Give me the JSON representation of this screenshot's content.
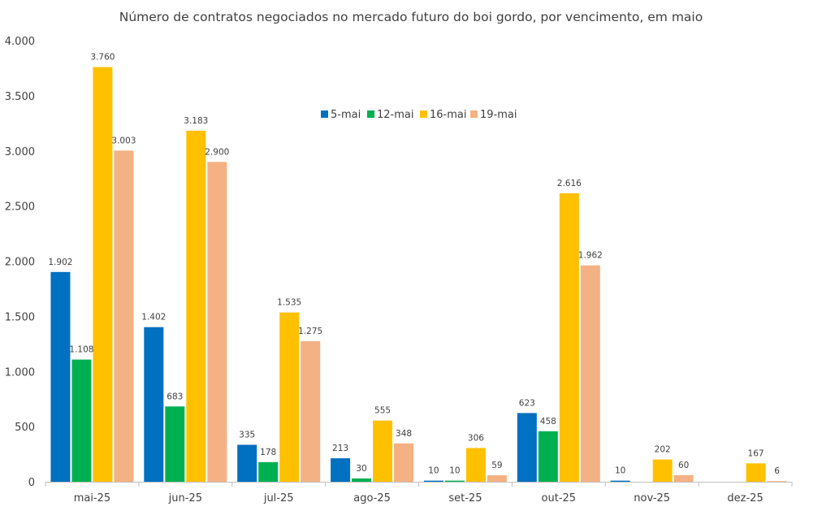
{
  "chart_data": {
    "type": "bar",
    "title": "Número de contratos negociados no mercado futuro do boi gordo, por vencimento, em maio",
    "xlabel": "",
    "ylabel": "",
    "ylim": [
      0,
      4000
    ],
    "yticks": [
      0,
      500,
      1000,
      1500,
      2000,
      2500,
      3000,
      3500,
      4000
    ],
    "ytick_labels": [
      "0",
      "500",
      "1.000",
      "1.500",
      "2.000",
      "2.500",
      "3.000",
      "3.500",
      "4.000"
    ],
    "grid": false,
    "legend_position": "top-center",
    "categories": [
      "mai-25",
      "jun-25",
      "jul-25",
      "ago-25",
      "set-25",
      "out-25",
      "nov-25",
      "dez-25"
    ],
    "series": [
      {
        "name": "5-mai",
        "color": "#0070C0",
        "values": [
          1902,
          1402,
          335,
          213,
          10,
          623,
          10,
          null
        ],
        "labels": [
          "1.902",
          "1.402",
          "335",
          "213",
          "10",
          "623",
          "10",
          ""
        ]
      },
      {
        "name": "12-mai",
        "color": "#00B050",
        "values": [
          1108,
          683,
          178,
          30,
          10,
          458,
          null,
          null
        ],
        "labels": [
          "1.108",
          "683",
          "178",
          "30",
          "10",
          "458",
          "",
          ""
        ]
      },
      {
        "name": "16-mai",
        "color": "#FFC000",
        "values": [
          3760,
          3183,
          1535,
          555,
          306,
          2616,
          202,
          167
        ],
        "labels": [
          "3.760",
          "3.183",
          "1.535",
          "555",
          "306",
          "2.616",
          "202",
          "167"
        ]
      },
      {
        "name": "19-mai",
        "color": "#F4B183",
        "values": [
          3003,
          2900,
          1275,
          348,
          59,
          1962,
          60,
          6
        ],
        "labels": [
          "3.003",
          "2.900",
          "1.275",
          "348",
          "59",
          "1.962",
          "60",
          "6"
        ]
      }
    ]
  },
  "colors": {
    "axis": "#BFBFBF",
    "text": "#404040"
  }
}
